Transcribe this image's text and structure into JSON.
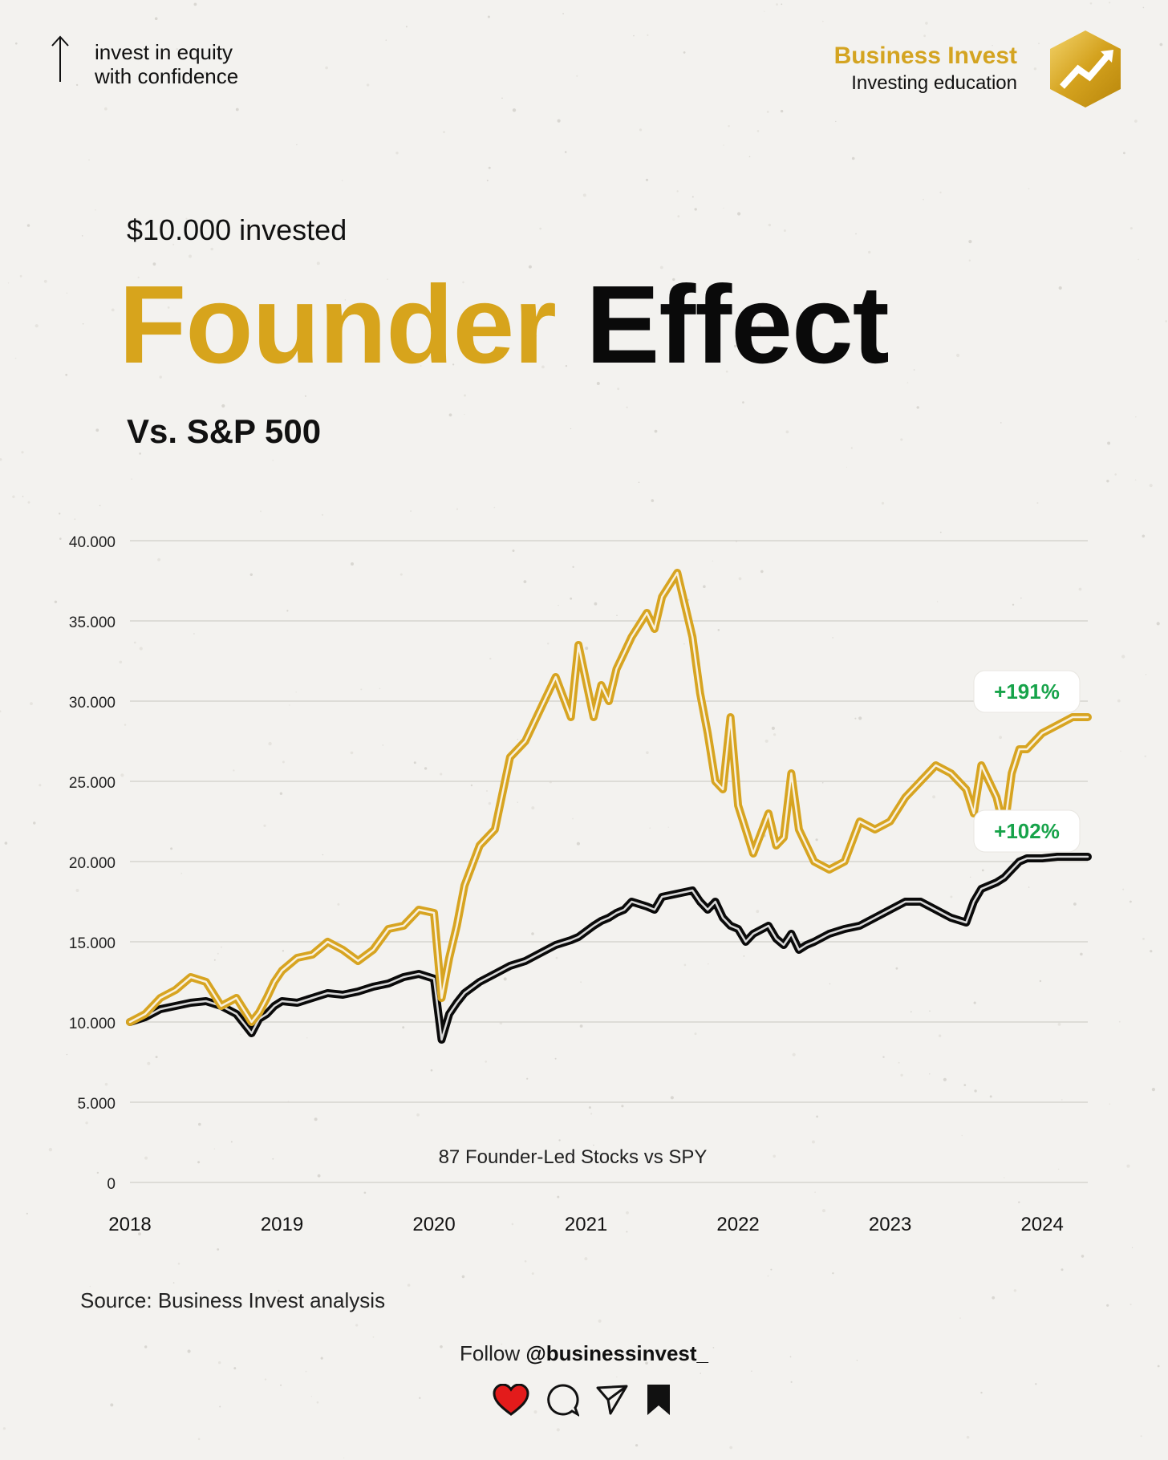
{
  "header": {
    "tagline_line1": "invest in equity",
    "tagline_line2": "with confidence",
    "brand_name": "Business Invest",
    "brand_sub": "Investing education"
  },
  "titles": {
    "sup": "$10.000 invested",
    "main_gold": "Founder",
    "main_black": "Effect",
    "vs": "Vs. S&P 500"
  },
  "chart_data": {
    "type": "line",
    "subtitle": "87 Founder-Led Stocks vs SPY",
    "xlabel": "",
    "ylabel": "",
    "ylim": [
      0,
      40000
    ],
    "xlim": [
      2018.0,
      2024.3
    ],
    "grid": true,
    "y_ticks": [
      "0",
      "5.000",
      "10.000",
      "15.000",
      "20.000",
      "25.000",
      "30.000",
      "35.000",
      "40.000"
    ],
    "x_ticks": [
      "2018",
      "2019",
      "2020",
      "2021",
      "2022",
      "2023",
      "2024"
    ],
    "series": [
      {
        "name": "87 Founder-Led Stocks",
        "color": "#d7a421",
        "end_label": "+191%",
        "x": [
          2018.0,
          2018.1,
          2018.2,
          2018.3,
          2018.4,
          2018.5,
          2018.6,
          2018.7,
          2018.8,
          2018.85,
          2018.9,
          2018.95,
          2019.0,
          2019.1,
          2019.2,
          2019.3,
          2019.4,
          2019.5,
          2019.6,
          2019.7,
          2019.8,
          2019.9,
          2020.0,
          2020.05,
          2020.1,
          2020.15,
          2020.2,
          2020.3,
          2020.4,
          2020.5,
          2020.6,
          2020.7,
          2020.8,
          2020.9,
          2020.95,
          2021.05,
          2021.1,
          2021.15,
          2021.2,
          2021.25,
          2021.3,
          2021.4,
          2021.45,
          2021.5,
          2021.6,
          2021.7,
          2021.75,
          2021.8,
          2021.85,
          2021.9,
          2021.95,
          2022.0,
          2022.05,
          2022.1,
          2022.2,
          2022.25,
          2022.3,
          2022.35,
          2022.4,
          2022.45,
          2022.5,
          2022.6,
          2022.7,
          2022.8,
          2022.9,
          2023.0,
          2023.1,
          2023.2,
          2023.3,
          2023.4,
          2023.5,
          2023.55,
          2023.6,
          2023.7,
          2023.75,
          2023.8,
          2023.85,
          2023.9,
          2024.0,
          2024.1,
          2024.2,
          2024.3
        ],
        "values": [
          10000,
          10500,
          11500,
          12000,
          12800,
          12500,
          11000,
          11500,
          10000,
          10600,
          11500,
          12500,
          13200,
          14000,
          14200,
          15000,
          14500,
          13800,
          14500,
          15800,
          16000,
          17000,
          16800,
          11500,
          14000,
          16000,
          18500,
          21000,
          22000,
          26500,
          27500,
          29500,
          31500,
          29000,
          33500,
          29000,
          31000,
          30000,
          32000,
          33000,
          34000,
          35500,
          34500,
          36500,
          38000,
          34000,
          30500,
          28000,
          25000,
          24500,
          29000,
          23500,
          22000,
          20500,
          23000,
          21000,
          21500,
          25500,
          22000,
          21000,
          20000,
          19500,
          20000,
          22500,
          22000,
          22500,
          24000,
          25000,
          26000,
          25500,
          24500,
          23000,
          26000,
          24000,
          22000,
          25500,
          27000,
          27000,
          28000,
          28500,
          29000,
          29000
        ]
      },
      {
        "name": "SPY",
        "color": "#0a0a0a",
        "end_label": "+102%",
        "x": [
          2018.0,
          2018.1,
          2018.2,
          2018.3,
          2018.4,
          2018.5,
          2018.6,
          2018.7,
          2018.8,
          2018.85,
          2018.9,
          2018.95,
          2019.0,
          2019.1,
          2019.2,
          2019.3,
          2019.4,
          2019.5,
          2019.6,
          2019.7,
          2019.8,
          2019.9,
          2020.0,
          2020.05,
          2020.1,
          2020.15,
          2020.2,
          2020.3,
          2020.4,
          2020.5,
          2020.6,
          2020.7,
          2020.8,
          2020.9,
          2020.95,
          2021.05,
          2021.1,
          2021.15,
          2021.2,
          2021.25,
          2021.3,
          2021.4,
          2021.45,
          2021.5,
          2021.6,
          2021.7,
          2021.75,
          2021.8,
          2021.85,
          2021.9,
          2021.95,
          2022.0,
          2022.05,
          2022.1,
          2022.2,
          2022.25,
          2022.3,
          2022.35,
          2022.4,
          2022.45,
          2022.5,
          2022.6,
          2022.7,
          2022.8,
          2022.9,
          2023.0,
          2023.1,
          2023.2,
          2023.3,
          2023.4,
          2023.5,
          2023.55,
          2023.6,
          2023.7,
          2023.75,
          2023.8,
          2023.85,
          2023.9,
          2024.0,
          2024.1,
          2024.2,
          2024.3
        ],
        "values": [
          10000,
          10300,
          10800,
          11000,
          11200,
          11300,
          11000,
          10500,
          9300,
          10200,
          10500,
          11000,
          11300,
          11200,
          11500,
          11800,
          11700,
          11900,
          12200,
          12400,
          12800,
          13000,
          12700,
          8900,
          10500,
          11200,
          11800,
          12500,
          13000,
          13500,
          13800,
          14300,
          14800,
          15100,
          15300,
          16000,
          16300,
          16500,
          16800,
          17000,
          17500,
          17200,
          17000,
          17800,
          18000,
          18200,
          17500,
          17000,
          17500,
          16500,
          16000,
          15800,
          15000,
          15500,
          16000,
          15200,
          14800,
          15500,
          14500,
          14800,
          15000,
          15500,
          15800,
          16000,
          16500,
          17000,
          17500,
          17500,
          17000,
          16500,
          16200,
          17500,
          18300,
          18700,
          19000,
          19500,
          20000,
          20200,
          20200,
          20300,
          20300,
          20300
        ]
      }
    ]
  },
  "footer": {
    "source": "Source: Business Invest analysis",
    "follow_prefix": "Follow ",
    "follow_handle": "@businessinvest_"
  }
}
